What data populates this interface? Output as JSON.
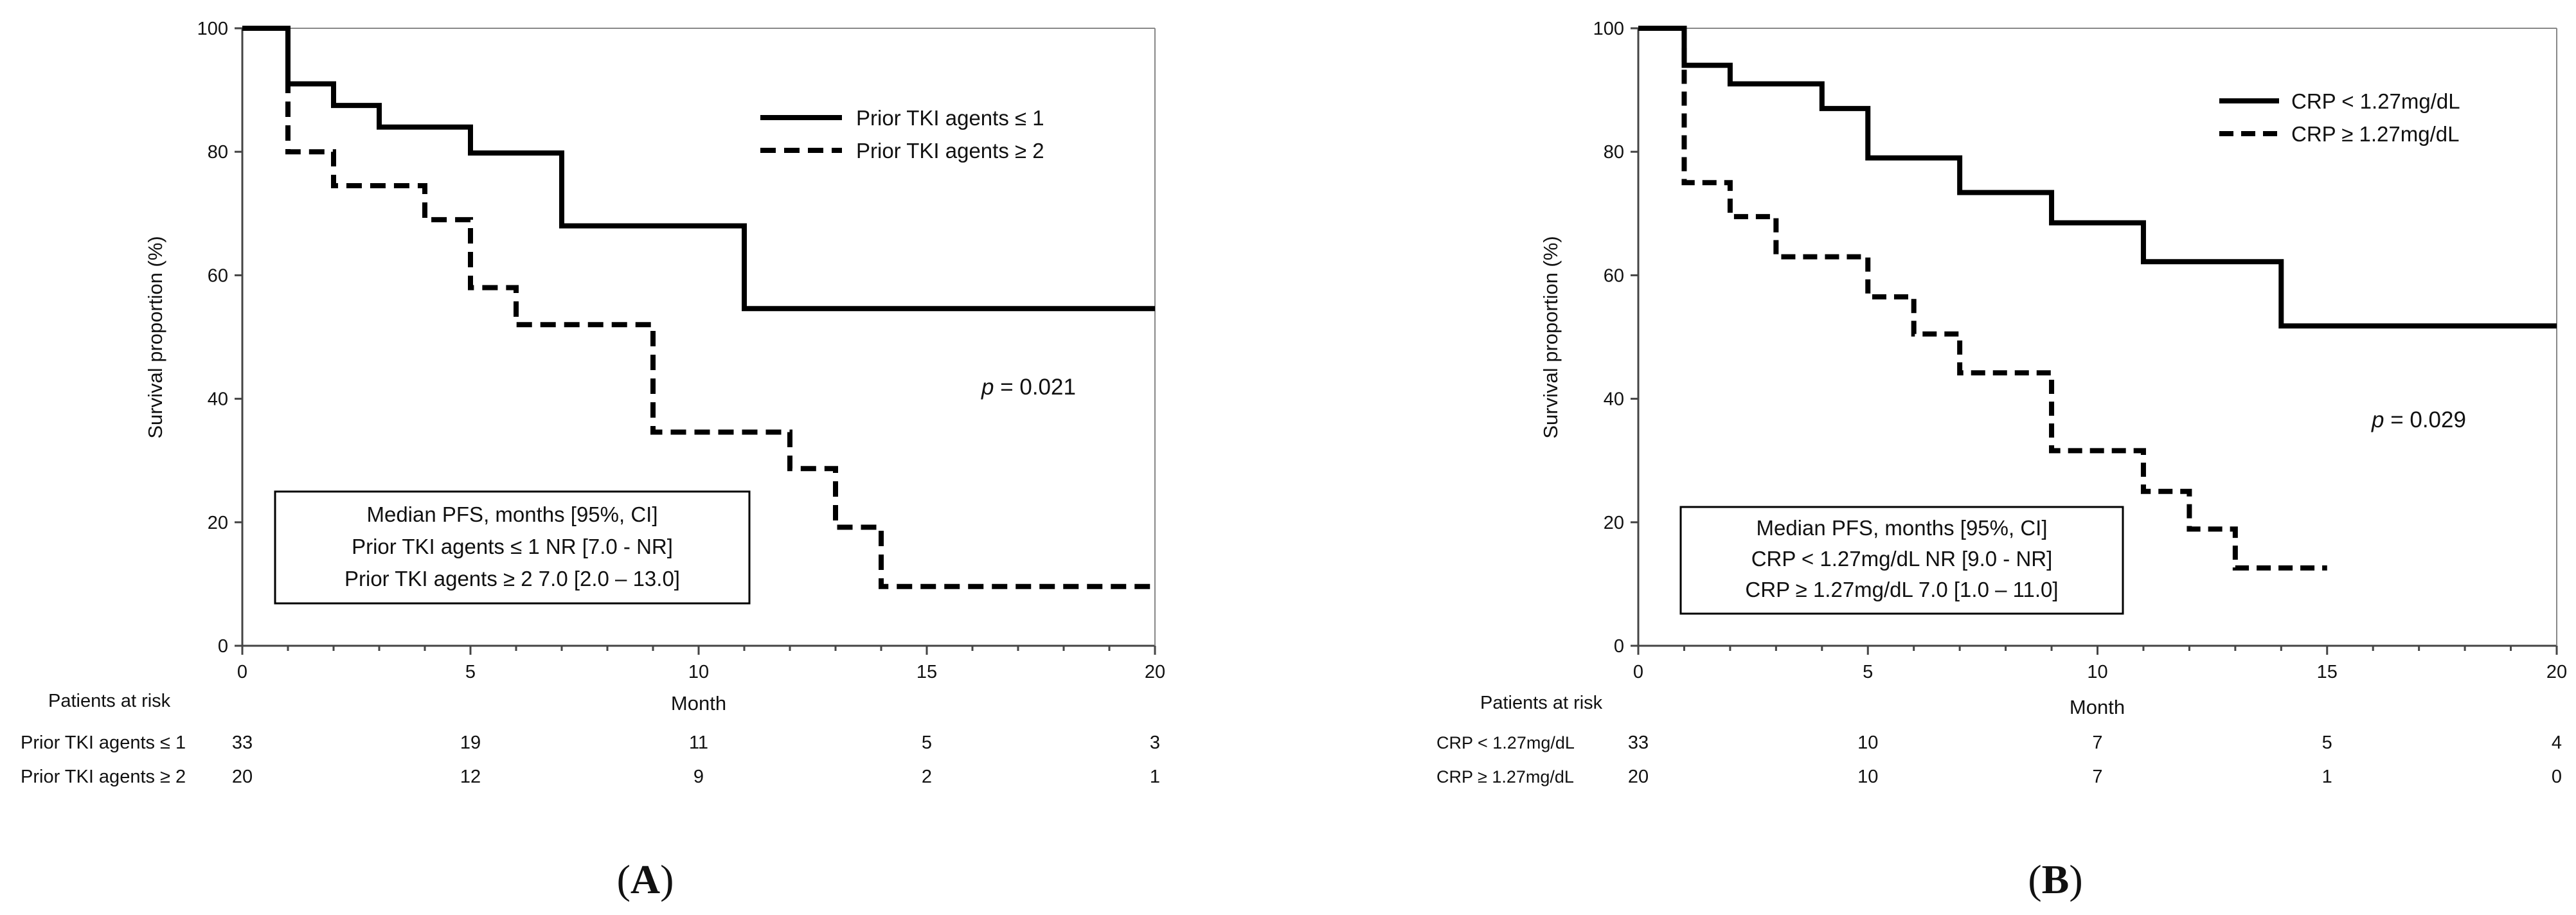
{
  "chart_data": [
    {
      "type": "line",
      "subtype": "kaplan-meier-step",
      "panel_label": "A",
      "xlabel": "Month",
      "ylabel": "Survival proportion (%)",
      "xlim": [
        0,
        20
      ],
      "ylim": [
        0,
        100
      ],
      "x_ticks": [
        0,
        5,
        10,
        15,
        20
      ],
      "y_ticks": [
        0,
        20,
        40,
        60,
        80,
        100
      ],
      "legend_position": "top-right",
      "series": [
        {
          "name": "Prior TKI agents ≤ 1",
          "line_style": "solid",
          "x": [
            0,
            1,
            2,
            3,
            5,
            7,
            11,
            20
          ],
          "y": [
            100,
            91,
            87.5,
            84,
            79.8,
            68,
            54.6,
            54.6
          ]
        },
        {
          "name": "Prior TKI agents ≥ 2",
          "line_style": "dashed",
          "x": [
            0,
            1,
            2,
            4,
            5,
            6,
            9,
            12,
            13,
            14,
            20
          ],
          "y": [
            100,
            80,
            74.5,
            69,
            58,
            52,
            34.6,
            28.7,
            19.2,
            9.6,
            9.6
          ]
        }
      ],
      "p_value": {
        "label": "p",
        "value": " = 0.021"
      },
      "median_box": [
        "Median PFS, months [95%, CI]",
        "Prior TKI agents ≤ 1 NR [7.0 - NR]",
        "Prior TKI agents ≥ 2 7.0 [2.0 – 13.0]"
      ],
      "risk_table": {
        "title": "Patients at risk",
        "rows": [
          {
            "label": "Prior TKI agents ≤ 1",
            "values": [
              "33",
              "19",
              "11",
              "5",
              "3"
            ]
          },
          {
            "label": "Prior TKI agents ≥ 2",
            "values": [
              "20",
              "12",
              "9",
              "2",
              "1"
            ]
          }
        ]
      }
    },
    {
      "type": "line",
      "subtype": "kaplan-meier-step",
      "panel_label": "B",
      "xlabel": "Month",
      "ylabel": "Survival proportion (%)",
      "xlim": [
        0,
        20
      ],
      "ylim": [
        0,
        100
      ],
      "x_ticks": [
        0,
        5,
        10,
        15,
        20
      ],
      "y_ticks": [
        0,
        20,
        40,
        60,
        80,
        100
      ],
      "legend_position": "top-right",
      "series": [
        {
          "name": "CRP < 1.27mg/dL",
          "line_style": "solid",
          "x": [
            0,
            1,
            2,
            4,
            5,
            7,
            9,
            11,
            14,
            20
          ],
          "y": [
            100,
            94,
            91,
            87,
            79,
            73.4,
            68.5,
            62.2,
            51.8,
            51.8
          ]
        },
        {
          "name": "CRP ≥ 1.27mg/dL",
          "line_style": "dashed",
          "x": [
            0,
            1,
            2,
            3,
            5,
            6,
            7,
            9,
            11,
            12,
            13,
            15
          ],
          "y": [
            100,
            75,
            69.5,
            63,
            56.5,
            50.5,
            44.2,
            31.6,
            25,
            18.9,
            12.6,
            12.6
          ]
        }
      ],
      "p_value": {
        "label": "p",
        "value": " = 0.029"
      },
      "median_box": [
        "Median PFS, months [95%, CI]",
        "CRP < 1.27mg/dL NR [9.0 - NR]",
        "CRP ≥ 1.27mg/dL 7.0 [1.0 – 11.0]"
      ],
      "risk_table": {
        "title": "Patients at risk",
        "rows": [
          {
            "label": "CRP < 1.27mg/dL",
            "values": [
              "33",
              "10",
              "7",
              "5",
              "4"
            ]
          },
          {
            "label": "CRP ≥ 1.27mg/dL",
            "values": [
              "20",
              "10",
              "7",
              "1",
              "0"
            ]
          }
        ]
      }
    }
  ]
}
